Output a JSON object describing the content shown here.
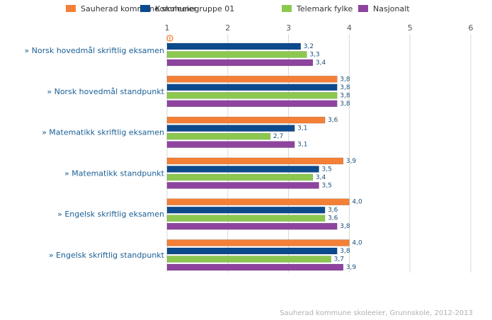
{
  "chart_data": {
    "type": "hbar",
    "categories": [
      "» Norsk hovedmål skriftlig eksamen",
      "» Norsk hovedmål standpunkt",
      "» Matematikk skriftlig eksamen",
      "» Matematikk standpunkt",
      "» Engelsk skriftlig eksamen",
      "» Engelsk skriftlig standpunkt"
    ],
    "series": [
      {
        "name": "Sauherad kommune skoleeier",
        "color": "#f47f36",
        "values": [
          null,
          3.8,
          3.6,
          3.9,
          4.0,
          4.0
        ],
        "value_labels": [
          null,
          "3,8",
          "3,6",
          "3,9",
          "4,0",
          "4,0"
        ]
      },
      {
        "name": "Kommunegruppe 01",
        "color": "#0c4a8e",
        "values": [
          3.2,
          3.8,
          3.1,
          3.5,
          3.6,
          3.8
        ],
        "value_labels": [
          "3,2",
          "3,8",
          "3,1",
          "3,5",
          "3,6",
          "3,8"
        ]
      },
      {
        "name": "Telemark fylke",
        "color": "#8cc84f",
        "values": [
          3.3,
          3.8,
          2.7,
          3.4,
          3.6,
          3.7
        ],
        "value_labels": [
          "3,3",
          "3,8",
          "2,7",
          "3,4",
          "3,6",
          "3,7"
        ]
      },
      {
        "name": "Nasjonalt",
        "color": "#8e449e",
        "values": [
          3.4,
          3.8,
          3.1,
          3.5,
          3.8,
          3.9
        ],
        "value_labels": [
          "3,4",
          "3,8",
          "3,1",
          "3,5",
          "3,8",
          "3,9"
        ]
      }
    ],
    "xlim": [
      1,
      6
    ],
    "xticks": [
      1,
      2,
      3,
      4,
      5,
      6
    ],
    "grid": true,
    "source": "Sauherad kommune skoleeier, Grunnskole, 2012-2013"
  }
}
